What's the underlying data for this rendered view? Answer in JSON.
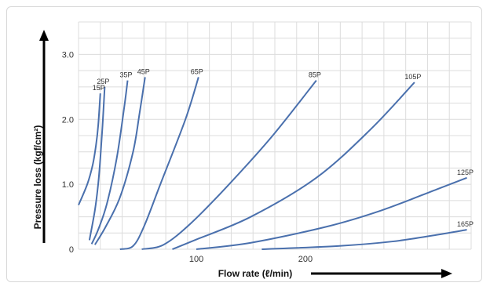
{
  "chart_data": {
    "type": "line",
    "xlabel": "Flow rate (ℓ/min)",
    "ylabel": "Pressure loss (kgf/cm²)",
    "xlim": [
      -8,
      362
    ],
    "ylim": [
      0,
      3.5
    ],
    "x_ticks": [
      100,
      200
    ],
    "y_ticks": [
      0,
      1.0,
      2.0,
      3.0
    ],
    "y_tick_labels": [
      "0",
      "1.0",
      "2.0",
      "3.0"
    ],
    "x_tick_labels": [
      "100",
      "200"
    ],
    "grid": true,
    "series": [
      {
        "name": "15P",
        "color": "#4a70ad",
        "points": [
          [
            -8,
            0.68
          ],
          [
            0,
            1.0
          ],
          [
            5,
            1.3
          ],
          [
            8,
            1.6
          ],
          [
            10,
            1.9
          ],
          [
            12,
            2.4
          ]
        ]
      },
      {
        "name": "25P",
        "color": "#4a70ad",
        "points": [
          [
            2,
            0.14
          ],
          [
            7,
            0.6
          ],
          [
            10,
            1.0
          ],
          [
            12,
            1.4
          ],
          [
            14,
            1.9
          ],
          [
            16,
            2.5
          ]
        ]
      },
      {
        "name": "35P",
        "color": "#4a70ad",
        "points": [
          [
            4,
            0.08
          ],
          [
            10,
            0.3
          ],
          [
            18,
            0.7
          ],
          [
            27,
            1.4
          ],
          [
            34,
            2.2
          ],
          [
            37,
            2.6
          ]
        ]
      },
      {
        "name": "45P",
        "color": "#4a70ad",
        "points": [
          [
            7,
            0.07
          ],
          [
            17,
            0.35
          ],
          [
            30,
            0.8
          ],
          [
            42,
            1.5
          ],
          [
            48,
            2.1
          ],
          [
            53,
            2.65
          ]
        ]
      },
      {
        "name": "65P",
        "color": "#4a70ad",
        "points": [
          [
            30,
            0.0
          ],
          [
            42,
            0.05
          ],
          [
            52,
            0.35
          ],
          [
            67,
            1.0
          ],
          [
            90,
            2.0
          ],
          [
            102,
            2.65
          ]
        ]
      },
      {
        "name": "85P",
        "color": "#4a70ad",
        "points": [
          [
            50,
            0.0
          ],
          [
            70,
            0.07
          ],
          [
            95,
            0.4
          ],
          [
            130,
            1.0
          ],
          [
            170,
            1.75
          ],
          [
            210,
            2.6
          ]
        ]
      },
      {
        "name": "105P",
        "color": "#4a70ad",
        "points": [
          [
            78,
            0.0
          ],
          [
            100,
            0.15
          ],
          [
            150,
            0.5
          ],
          [
            210,
            1.1
          ],
          [
            260,
            1.85
          ],
          [
            300,
            2.57
          ]
        ]
      },
      {
        "name": "125P",
        "color": "#4a70ad",
        "points": [
          [
            100,
            0.0
          ],
          [
            150,
            0.1
          ],
          [
            220,
            0.35
          ],
          [
            270,
            0.6
          ],
          [
            320,
            0.92
          ],
          [
            348,
            1.1
          ]
        ]
      },
      {
        "name": "165P",
        "color": "#4a70ad",
        "points": [
          [
            160,
            0.0
          ],
          [
            230,
            0.05
          ],
          [
            280,
            0.12
          ],
          [
            320,
            0.22
          ],
          [
            348,
            0.3
          ]
        ]
      }
    ]
  }
}
